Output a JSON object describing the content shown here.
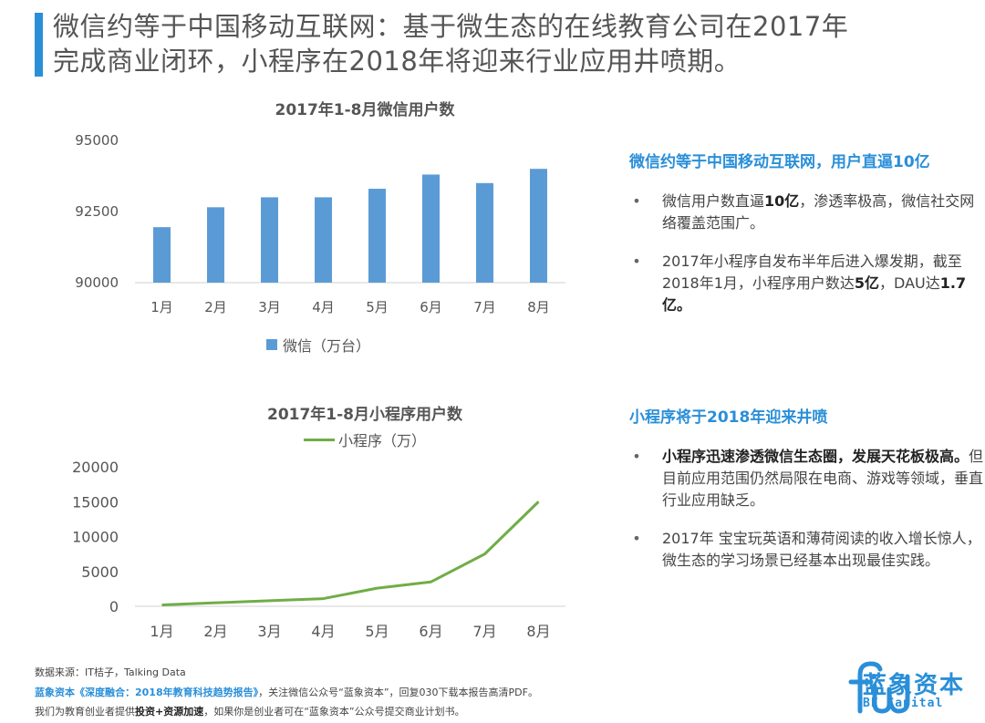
{
  "header": {
    "title_line1": "微信约等于中国移动互联网：基于微生态的在线教育公司在2017年",
    "title_line2": "完成商业闭环，小程序在2018年将迎来行业应用井喷期。"
  },
  "chart_data": [
    {
      "type": "bar",
      "title": "2017年1-8月微信用户数",
      "categories": [
        "1月",
        "2月",
        "3月",
        "4月",
        "5月",
        "6月",
        "7月",
        "8月"
      ],
      "series": [
        {
          "name": "微信（万台）",
          "values": [
            91950,
            92650,
            93000,
            93000,
            93300,
            93800,
            93500,
            94000
          ]
        }
      ],
      "ylim": [
        90000,
        95000
      ],
      "yticks": [
        "95000",
        "92500",
        "90000"
      ],
      "ytick_values": [
        95000,
        92500,
        90000
      ],
      "xlabel": "",
      "ylabel": "",
      "color": "#5b9bd5"
    },
    {
      "type": "line",
      "title": "2017年1-8月小程序用户数",
      "categories": [
        "1月",
        "2月",
        "3月",
        "4月",
        "5月",
        "6月",
        "7月",
        "8月"
      ],
      "series": [
        {
          "name": "小程序（万）",
          "values": [
            200,
            500,
            800,
            1100,
            2600,
            3500,
            7500,
            15000
          ]
        }
      ],
      "ylim": [
        0,
        20000
      ],
      "yticks": [
        "20000",
        "15000",
        "10000",
        "5000",
        "0"
      ],
      "ytick_values": [
        20000,
        15000,
        10000,
        5000,
        0
      ],
      "xlabel": "",
      "ylabel": "",
      "color": "#70ad47"
    }
  ],
  "side1": {
    "heading": "微信约等于中国移动互联网，用户直逼10亿",
    "b1_pre": "微信用户数直逼",
    "b1_bold": "10亿",
    "b1_post": "，渗透率极高，微信社交网络覆盖范围广。",
    "b2_pre": "2017年小程序自发布半年后进入爆发期，截至2018年1月，小程序用户数达",
    "b2_bold1": "5亿",
    "b2_mid": "，DAU达",
    "b2_bold2": "1.7亿。"
  },
  "side2": {
    "heading": "小程序将于2018年迎来井喷",
    "b1_bold": "小程序迅速渗透微信生态圈，发展天花板极高。",
    "b1_post": "但目前应用范围仍然局限在电商、游戏等领域，垂直行业应用缺乏。",
    "b2": "2017年 宝宝玩英语和薄荷阅读的收入增长惊人，微生态的学习场景已经基本出现最佳实践。"
  },
  "bullet_char": "•",
  "footer": {
    "source": "数据来源：IT桔子，Talking Data",
    "promo_accent": "蓝象资本《深度融合：2018年教育科技趋势报告》",
    "promo_rest": "，关注微信公众号“蓝象资本”，回复030下载本报告高清PDF。",
    "promo2_pre": "我们为教育创业者提供",
    "promo2_bold": "投资+资源加速",
    "promo2_post": "，如果你是创业者可在“蓝象资本”公众号提交商业计划书。"
  },
  "logo": {
    "name": "蓝象资本",
    "sub": "BE Capital"
  },
  "colors": {
    "accent": "#2a8fd8"
  }
}
